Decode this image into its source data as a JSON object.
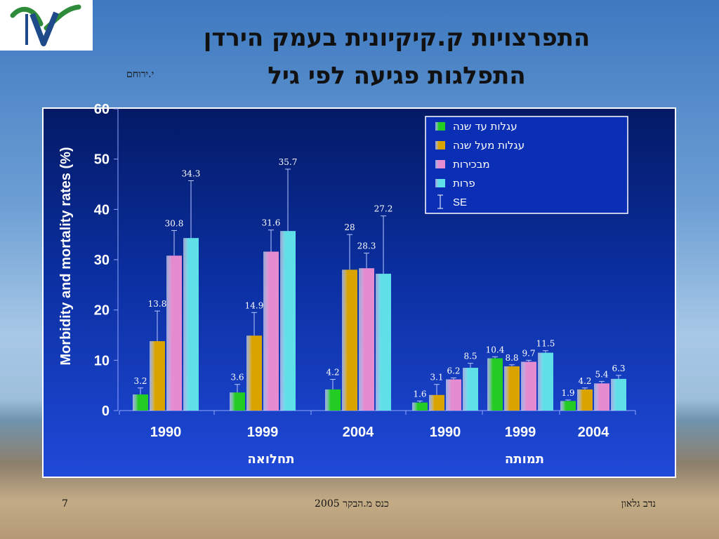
{
  "slide": {
    "title_line1": "התפרצויות ק.קיקיונית בעמק הירדן",
    "title_line2": "התפלגות פגיעה לפי גיל",
    "author": "י.ירוחם",
    "footer_page": "7",
    "footer_center": "כנס מ.הבקר 2005",
    "footer_right": "נדב גלאון"
  },
  "colors": {
    "series": [
      "#22cc22",
      "#d9a400",
      "#e58bd0",
      "#5fe0e8"
    ],
    "panel": "#0b2fa0"
  },
  "chart_data": {
    "type": "bar",
    "title": "",
    "xlabel": "",
    "ylabel": "Morbidity and mortality rates (%)",
    "ylim": [
      0,
      60
    ],
    "yticks": [
      "0",
      "10",
      "20",
      "30",
      "40",
      "50",
      "60"
    ],
    "categories": [
      "1990",
      "1999",
      "2004",
      "1990",
      "1999",
      "2004"
    ],
    "groups": [
      {
        "label": "תחלואה",
        "categories": [
          "1990",
          "1999",
          "2004"
        ]
      },
      {
        "label": "תמותה",
        "categories": [
          "1990",
          "1999",
          "2004"
        ]
      }
    ],
    "series": [
      {
        "name": "עגלות עד שנה",
        "values": [
          3.2,
          3.6,
          4.2,
          1.6,
          10.4,
          1.9
        ],
        "labels": [
          "3.2",
          "3.6",
          "4.2",
          "1.6",
          "10.4",
          "1.9"
        ],
        "err": [
          1.3,
          1.6,
          2.0,
          0.3,
          0.3,
          0.2
        ]
      },
      {
        "name": "עגלות מעל שנה",
        "values": [
          13.8,
          14.9,
          28,
          3.1,
          8.8,
          4.2
        ],
        "labels": [
          "13.8",
          "14.9",
          "28",
          "3.1",
          "8.8",
          "4.2"
        ],
        "err": [
          6.0,
          4.6,
          7.0,
          2.1,
          0.3,
          0.3
        ]
      },
      {
        "name": "מבכירות",
        "values": [
          30.8,
          31.6,
          28.3,
          6.2,
          9.7,
          5.4
        ],
        "labels": [
          "30.8",
          "31.6",
          "28.3",
          "6.2",
          "9.7",
          "5.4"
        ],
        "err": [
          5.0,
          4.3,
          3.0,
          0.3,
          0.3,
          0.4
        ]
      },
      {
        "name": "פרות",
        "values": [
          34.3,
          35.7,
          27.2,
          8.5,
          11.5,
          6.3
        ],
        "labels": [
          "34.3",
          "35.7",
          "27.2",
          "8.5",
          "11.5",
          "6.3"
        ],
        "err": [
          11.4,
          12.3,
          11.5,
          0.9,
          0.4,
          0.7
        ]
      }
    ],
    "legend": {
      "entries": [
        "עגלות עד שנה",
        "עגלות מעל שנה",
        "מבכירות",
        "פרות"
      ],
      "error_label": "SE",
      "placement": "top-right"
    },
    "grid": false
  }
}
